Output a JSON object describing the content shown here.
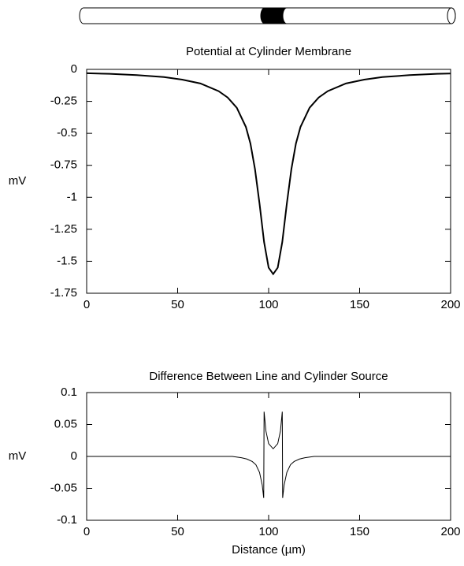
{
  "chart_data": [
    {
      "type": "line",
      "title": "Potential at Cylinder Membrane",
      "ylabel": "mV",
      "x": [
        0,
        12.5,
        27.5,
        42.5,
        52.5,
        62.5,
        72.5,
        77.5,
        82.5,
        87.5,
        90,
        92.5,
        95,
        97.5,
        100,
        102.5,
        105,
        107.5,
        110,
        112.5,
        115,
        117.5,
        122.5,
        127.5,
        132.5,
        142.5,
        152.5,
        162.5,
        177.5,
        192.5,
        200
      ],
      "series": [
        {
          "color": "#000000",
          "values": [
            -0.03,
            -0.035,
            -0.045,
            -0.06,
            -0.08,
            -0.11,
            -0.17,
            -0.22,
            -0.3,
            -0.45,
            -0.58,
            -0.78,
            -1.05,
            -1.35,
            -1.55,
            -1.6,
            -1.55,
            -1.35,
            -1.05,
            -0.78,
            -0.58,
            -0.45,
            -0.3,
            -0.22,
            -0.17,
            -0.11,
            -0.08,
            -0.06,
            -0.045,
            -0.035,
            -0.032
          ]
        }
      ],
      "xlim": [
        0,
        200
      ],
      "xticks": [
        0,
        50,
        100,
        150,
        200
      ],
      "ylim": [
        -1.75,
        0
      ],
      "yticks": [
        0,
        -0.25,
        -0.5,
        -0.75,
        -1,
        -1.25,
        -1.5,
        -1.75
      ]
    },
    {
      "type": "line",
      "title": "Difference Between Line and Cylinder Source",
      "ylabel": "mV",
      "xlabel": "Distance (µm)",
      "x": [
        0,
        80,
        85,
        88,
        91,
        93,
        95,
        96.5,
        97.3,
        97.5,
        98.5,
        100,
        102.5,
        105,
        106.5,
        107.5,
        107.7,
        108.5,
        110,
        112,
        114,
        117,
        120,
        125,
        200
      ],
      "series": [
        {
          "color": "#000000",
          "values": [
            0,
            0,
            -0.002,
            -0.004,
            -0.008,
            -0.013,
            -0.025,
            -0.045,
            -0.065,
            0.07,
            0.04,
            0.02,
            0.012,
            0.02,
            0.04,
            0.07,
            -0.065,
            -0.045,
            -0.025,
            -0.013,
            -0.008,
            -0.004,
            -0.002,
            0,
            0
          ]
        }
      ],
      "xlim": [
        0,
        200
      ],
      "xticks": [
        0,
        50,
        100,
        150,
        200
      ],
      "ylim": [
        -0.1,
        0.1
      ],
      "yticks": [
        0.1,
        0.05,
        0,
        -0.05,
        -0.1
      ]
    }
  ]
}
